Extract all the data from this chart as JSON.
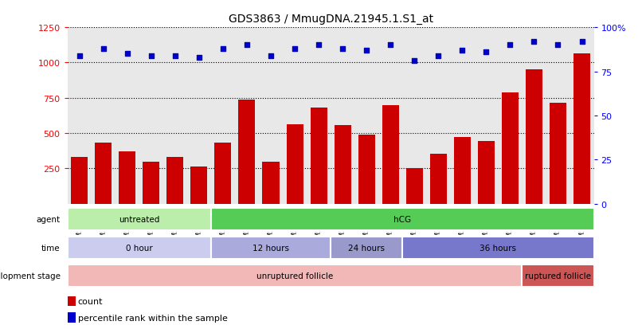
{
  "title": "GDS3863 / MmugDNA.21945.1.S1_at",
  "samples": [
    "GSM563219",
    "GSM563220",
    "GSM563221",
    "GSM563222",
    "GSM563223",
    "GSM563224",
    "GSM563225",
    "GSM563226",
    "GSM563227",
    "GSM563228",
    "GSM563229",
    "GSM563230",
    "GSM563231",
    "GSM563232",
    "GSM563233",
    "GSM563234",
    "GSM563235",
    "GSM563236",
    "GSM563237",
    "GSM563238",
    "GSM563239",
    "GSM563240"
  ],
  "counts": [
    330,
    430,
    370,
    295,
    330,
    265,
    430,
    740,
    300,
    560,
    680,
    555,
    490,
    700,
    250,
    355,
    470,
    445,
    790,
    950,
    715,
    1065
  ],
  "percentile_ranks": [
    84,
    88,
    85,
    84,
    84,
    83,
    88,
    90,
    84,
    88,
    90,
    88,
    87,
    90,
    81,
    84,
    87,
    86,
    90,
    92,
    90,
    92
  ],
  "bar_color": "#cc0000",
  "dot_color": "#0000cc",
  "ylim_left": [
    0,
    1250
  ],
  "ylim_right": [
    0,
    100
  ],
  "yticks_left": [
    250,
    500,
    750,
    1000,
    1250
  ],
  "yticks_right": [
    0,
    25,
    50,
    75,
    100
  ],
  "plot_bg_color": "#e8e8e8",
  "agent_row": {
    "label": "agent",
    "segments": [
      {
        "text": "untreated",
        "start": 0,
        "end": 6,
        "color": "#bbeeaa"
      },
      {
        "text": "hCG",
        "start": 6,
        "end": 22,
        "color": "#55cc55"
      }
    ]
  },
  "time_row": {
    "label": "time",
    "segments": [
      {
        "text": "0 hour",
        "start": 0,
        "end": 6,
        "color": "#ccccee"
      },
      {
        "text": "12 hours",
        "start": 6,
        "end": 11,
        "color": "#aaaadd"
      },
      {
        "text": "24 hours",
        "start": 11,
        "end": 14,
        "color": "#9999cc"
      },
      {
        "text": "36 hours",
        "start": 14,
        "end": 22,
        "color": "#7777cc"
      }
    ]
  },
  "devstage_row": {
    "label": "development stage",
    "segments": [
      {
        "text": "unruptured follicle",
        "start": 0,
        "end": 19,
        "color": "#f2b8b8"
      },
      {
        "text": "ruptured follicle",
        "start": 19,
        "end": 22,
        "color": "#cc5555"
      }
    ]
  }
}
